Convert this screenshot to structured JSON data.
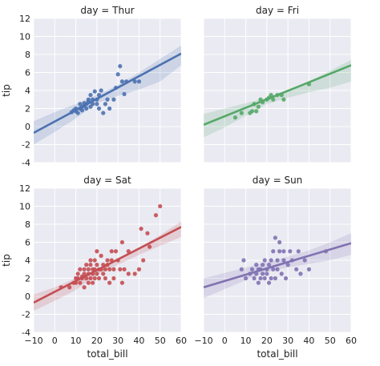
{
  "chart_data": {
    "type": "scatter",
    "shared_axes": {
      "xlabel": "total_bill",
      "ylabel": "tip",
      "xlim": [
        -10,
        60
      ],
      "ylim": [
        -4,
        12
      ],
      "xticks": [
        -10,
        0,
        10,
        20,
        30,
        40,
        50,
        60
      ],
      "yticks": [
        -4,
        -2,
        0,
        2,
        4,
        6,
        8,
        10,
        12
      ],
      "grid": true,
      "background": "#eaeaf2"
    },
    "panels": [
      {
        "title": "day = Thur",
        "color": "#4c72b0",
        "regression": {
          "x": [
            -10,
            60
          ],
          "y": [
            -0.7,
            8.1
          ]
        },
        "ci_band": {
          "x": [
            -10,
            0,
            10,
            20,
            30,
            40,
            50,
            60
          ],
          "upper": [
            0.6,
            1.6,
            2.5,
            3.5,
            4.6,
            6.0,
            7.5,
            9.0
          ],
          "lower": [
            -2.0,
            -0.6,
            0.9,
            2.6,
            3.4,
            4.1,
            5.0,
            6.8
          ]
        },
        "points": [
          [
            8,
            1.6
          ],
          [
            9,
            1.8
          ],
          [
            10,
            1.7
          ],
          [
            10,
            2.0
          ],
          [
            11,
            1.5
          ],
          [
            12,
            2.0
          ],
          [
            12,
            2.5
          ],
          [
            13,
            2.2
          ],
          [
            13,
            1.8
          ],
          [
            14,
            2.3
          ],
          [
            14,
            2.6
          ],
          [
            15,
            2.0
          ],
          [
            15,
            2.5
          ],
          [
            16,
            2.8
          ],
          [
            16,
            3.0
          ],
          [
            17,
            2.2
          ],
          [
            17,
            3.5
          ],
          [
            18,
            2.5
          ],
          [
            18,
            3.0
          ],
          [
            19,
            3.9
          ],
          [
            20,
            2.5
          ],
          [
            20,
            3.0
          ],
          [
            21,
            2.0
          ],
          [
            21,
            3.5
          ],
          [
            22,
            4.0
          ],
          [
            23,
            1.5
          ],
          [
            24,
            2.5
          ],
          [
            25,
            3.0
          ],
          [
            26,
            2.0
          ],
          [
            28,
            3.0
          ],
          [
            29,
            4.3
          ],
          [
            30,
            5.8
          ],
          [
            32,
            5.0
          ],
          [
            34,
            5.0
          ],
          [
            38,
            5.0
          ],
          [
            40,
            5.0
          ],
          [
            31,
            6.7
          ],
          [
            33,
            3.6
          ]
        ]
      },
      {
        "title": "day = Fri",
        "color": "#55a868",
        "regression": {
          "x": [
            -10,
            60
          ],
          "y": [
            0.2,
            6.8
          ]
        },
        "ci_band": {
          "x": [
            -10,
            0,
            10,
            20,
            30,
            40,
            50,
            60
          ],
          "upper": [
            1.4,
            2.0,
            2.6,
            3.2,
            4.0,
            5.0,
            6.2,
            7.4
          ],
          "lower": [
            -1.2,
            -0.1,
            1.2,
            2.5,
            3.2,
            3.8,
            4.3,
            5.0
          ]
        },
        "points": [
          [
            5,
            1.0
          ],
          [
            8,
            1.5
          ],
          [
            12,
            1.5
          ],
          [
            13,
            1.7
          ],
          [
            14,
            2.5
          ],
          [
            15,
            1.7
          ],
          [
            16,
            2.2
          ],
          [
            17,
            3.0
          ],
          [
            18,
            2.7
          ],
          [
            20,
            3.0
          ],
          [
            21,
            3.2
          ],
          [
            22,
            3.5
          ],
          [
            23,
            3.0
          ],
          [
            25,
            3.5
          ],
          [
            27,
            3.5
          ],
          [
            28,
            3.0
          ],
          [
            40,
            4.7
          ]
        ]
      },
      {
        "title": "day = Sat",
        "color": "#c44e52",
        "regression": {
          "x": [
            -10,
            60
          ],
          "y": [
            -0.7,
            7.7
          ]
        },
        "ci_band": {
          "x": [
            -10,
            0,
            10,
            20,
            30,
            40,
            50,
            60
          ],
          "upper": [
            0.2,
            1.0,
            2.0,
            3.0,
            4.1,
            5.4,
            6.8,
            8.3
          ],
          "lower": [
            -1.6,
            -0.5,
            0.7,
            2.4,
            3.5,
            4.6,
            5.6,
            6.6
          ]
        },
        "points": [
          [
            3,
            1.0
          ],
          [
            7,
            1.0
          ],
          [
            9,
            1.5
          ],
          [
            10,
            1.5
          ],
          [
            10,
            2.0
          ],
          [
            11,
            2.0
          ],
          [
            11,
            2.5
          ],
          [
            12,
            1.5
          ],
          [
            12,
            3.0
          ],
          [
            13,
            2.0
          ],
          [
            13,
            2.2
          ],
          [
            14,
            1.0
          ],
          [
            14,
            2.5
          ],
          [
            14,
            3.0
          ],
          [
            15,
            2.0
          ],
          [
            15,
            3.5
          ],
          [
            16,
            1.5
          ],
          [
            16,
            2.5
          ],
          [
            16,
            3.0
          ],
          [
            17,
            2.0
          ],
          [
            17,
            3.5
          ],
          [
            17,
            4.0
          ],
          [
            18,
            2.5
          ],
          [
            18,
            3.0
          ],
          [
            18,
            1.5
          ],
          [
            19,
            2.0
          ],
          [
            19,
            3.0
          ],
          [
            19,
            4.0
          ],
          [
            20,
            2.5
          ],
          [
            20,
            3.5
          ],
          [
            20,
            5.0
          ],
          [
            21,
            2.0
          ],
          [
            21,
            3.0
          ],
          [
            22,
            3.0
          ],
          [
            22,
            4.5
          ],
          [
            23,
            2.5
          ],
          [
            23,
            3.5
          ],
          [
            24,
            2.0
          ],
          [
            24,
            3.0
          ],
          [
            25,
            3.5
          ],
          [
            25,
            4.0
          ],
          [
            26,
            1.5
          ],
          [
            26,
            3.0
          ],
          [
            27,
            4.0
          ],
          [
            27,
            5.0
          ],
          [
            28,
            2.0
          ],
          [
            28,
            3.0
          ],
          [
            29,
            5.0
          ],
          [
            30,
            4.0
          ],
          [
            31,
            3.0
          ],
          [
            32,
            1.5
          ],
          [
            32,
            6.0
          ],
          [
            33,
            3.0
          ],
          [
            35,
            2.5
          ],
          [
            35,
            5.0
          ],
          [
            38,
            2.5
          ],
          [
            40,
            3.0
          ],
          [
            41,
            7.5
          ],
          [
            42,
            4.0
          ],
          [
            44,
            7.0
          ],
          [
            45,
            5.5
          ],
          [
            48,
            9.0
          ],
          [
            50,
            10.0
          ]
        ]
      },
      {
        "title": "day = Sun",
        "color": "#8172b2",
        "regression": {
          "x": [
            -10,
            60
          ],
          "y": [
            1.0,
            5.9
          ]
        },
        "ci_band": {
          "x": [
            -10,
            0,
            10,
            20,
            30,
            40,
            50,
            60
          ],
          "upper": [
            2.0,
            2.6,
            3.2,
            3.8,
            4.4,
            5.1,
            6.0,
            7.0
          ],
          "lower": [
            -0.2,
            0.8,
            1.8,
            2.7,
            3.2,
            3.6,
            4.0,
            4.6
          ]
        },
        "points": [
          [
            8,
            3.0
          ],
          [
            9,
            4.0
          ],
          [
            10,
            2.0
          ],
          [
            12,
            2.5
          ],
          [
            13,
            3.0
          ],
          [
            14,
            2.0
          ],
          [
            15,
            2.5
          ],
          [
            15,
            3.5
          ],
          [
            16,
            1.5
          ],
          [
            16,
            3.0
          ],
          [
            17,
            2.0
          ],
          [
            17,
            3.0
          ],
          [
            18,
            2.5
          ],
          [
            18,
            3.5
          ],
          [
            19,
            2.0
          ],
          [
            19,
            4.0
          ],
          [
            20,
            3.0
          ],
          [
            20,
            2.5
          ],
          [
            21,
            1.5
          ],
          [
            21,
            3.5
          ],
          [
            22,
            2.0
          ],
          [
            22,
            4.0
          ],
          [
            23,
            3.0
          ],
          [
            23,
            5.0
          ],
          [
            24,
            2.0
          ],
          [
            24,
            6.5
          ],
          [
            25,
            3.0
          ],
          [
            25,
            4.0
          ],
          [
            26,
            5.0
          ],
          [
            26,
            6.0
          ],
          [
            27,
            2.5
          ],
          [
            28,
            4.0
          ],
          [
            28,
            5.0
          ],
          [
            29,
            2.0
          ],
          [
            30,
            3.5
          ],
          [
            31,
            5.0
          ],
          [
            32,
            4.0
          ],
          [
            34,
            3.0
          ],
          [
            35,
            5.0
          ],
          [
            36,
            2.5
          ],
          [
            38,
            4.0
          ],
          [
            40,
            3.0
          ],
          [
            48,
            5.0
          ]
        ]
      }
    ]
  }
}
